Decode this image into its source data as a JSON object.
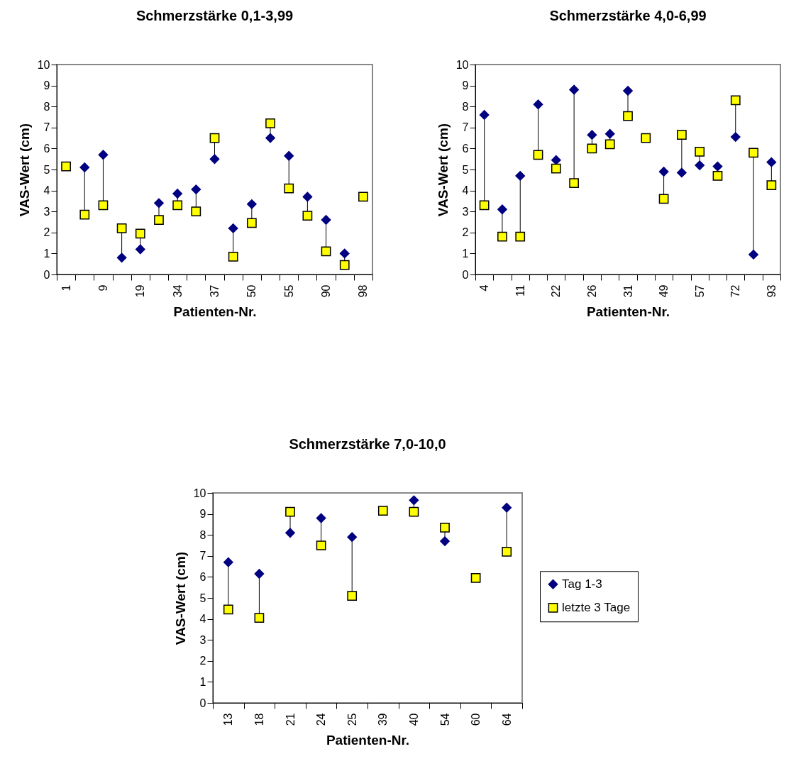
{
  "chart_data": [
    {
      "type": "scatter",
      "title": "Schmerzstärke 0,1-3,99",
      "xlabel": "Patienten-Nr.",
      "ylabel": "VAS-Wert (cm)",
      "categories": [
        "1",
        null,
        "9",
        null,
        "19",
        null,
        "34",
        null,
        "37",
        null,
        "50",
        null,
        "55",
        null,
        "90",
        null,
        "98"
      ],
      "ylim": [
        0,
        10
      ],
      "yticks": [
        0,
        1,
        2,
        3,
        4,
        5,
        6,
        7,
        8,
        9,
        10
      ],
      "grid": false,
      "legend": false,
      "series": [
        {
          "color": "#000080",
          "marker": "diamond",
          "values": [
            null,
            5.1,
            5.7,
            0.8,
            1.2,
            3.4,
            3.85,
            4.05,
            5.5,
            2.2,
            3.35,
            6.5,
            5.65,
            3.7,
            2.6,
            1.0,
            null
          ]
        },
        {
          "color": "#ffff00",
          "marker": "square",
          "values": [
            5.15,
            2.85,
            3.3,
            2.2,
            1.95,
            2.6,
            3.3,
            3.0,
            6.5,
            0.85,
            2.45,
            7.2,
            4.1,
            2.8,
            1.1,
            0.45,
            3.7
          ]
        }
      ]
    },
    {
      "type": "scatter",
      "title": "Schmerzstärke 4,0-6,99",
      "xlabel": "Patienten-Nr.",
      "ylabel": "VAS-Wert (cm)",
      "categories": [
        "4",
        null,
        "11",
        null,
        "22",
        null,
        "26",
        null,
        "31",
        null,
        "49",
        null,
        "57",
        null,
        "72",
        null,
        "93"
      ],
      "ylim": [
        0,
        10
      ],
      "yticks": [
        0,
        1,
        2,
        3,
        4,
        5,
        6,
        7,
        8,
        9,
        10
      ],
      "grid": false,
      "legend": false,
      "series": [
        {
          "color": "#000080",
          "marker": "diamond",
          "values": [
            7.6,
            3.1,
            4.7,
            8.1,
            5.45,
            8.8,
            6.65,
            6.7,
            8.75,
            null,
            4.9,
            4.85,
            5.2,
            5.15,
            6.55,
            0.95,
            5.35
          ]
        },
        {
          "color": "#ffff00",
          "marker": "square",
          "values": [
            3.3,
            1.8,
            1.8,
            5.7,
            5.05,
            4.35,
            6.0,
            6.2,
            7.55,
            6.5,
            3.6,
            6.65,
            5.85,
            4.7,
            8.3,
            5.8,
            4.25
          ]
        }
      ]
    },
    {
      "type": "scatter",
      "title": "Schmerzstärke 7,0-10,0",
      "xlabel": "Patienten-Nr.",
      "ylabel": "VAS-Wert (cm)",
      "categories": [
        "13",
        "18",
        "21",
        "24",
        "25",
        "39",
        "40",
        "54",
        "60",
        "64"
      ],
      "ylim": [
        0,
        10
      ],
      "yticks": [
        0,
        1,
        2,
        3,
        4,
        5,
        6,
        7,
        8,
        9,
        10
      ],
      "grid": false,
      "legend": "right",
      "series": [
        {
          "name": "Tag 1-3",
          "color": "#000080",
          "marker": "diamond",
          "values": [
            6.7,
            6.15,
            8.1,
            8.8,
            7.9,
            null,
            9.65,
            7.7,
            null,
            9.3
          ]
        },
        {
          "name": "letzte 3 Tage",
          "color": "#ffff00",
          "marker": "square",
          "values": [
            4.45,
            4.05,
            9.1,
            7.5,
            5.1,
            9.15,
            9.1,
            8.35,
            5.95,
            7.2
          ]
        }
      ]
    }
  ]
}
